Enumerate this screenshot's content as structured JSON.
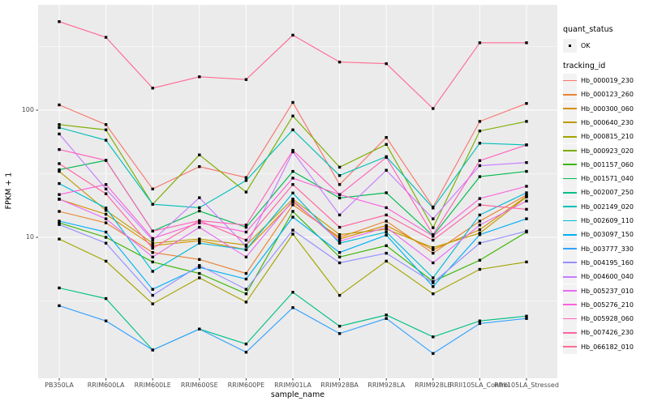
{
  "chart_data": {
    "type": "line",
    "title": "",
    "xlabel": "sample_name",
    "ylabel": "FPKM + 1",
    "y_scale": "log10",
    "y_ticks": [
      {
        "label": "100",
        "value": 100
      },
      {
        "label": "10",
        "value": 10
      }
    ],
    "ylim": [
      0.78,
      660
    ],
    "grid": "on",
    "legend_position": "right",
    "panel_bg": "#EBEBEB",
    "grid_color": "#FFFFFF",
    "point_color": "#000000",
    "axis_text_color": "#4D4D4D",
    "categories": [
      "PB350LA",
      "RRIM600LA",
      "RRIM600LE",
      "RRIM600SE",
      "RRIM600PE",
      "RRIM901LA",
      "RRIM928BA",
      "RRIM928LA",
      "RRIM928LE",
      "RRII105LA_Control",
      "RRII105LA_Stressed"
    ],
    "legend": {
      "quant_status_title": "quant_status",
      "quant_status_items": [
        {
          "label": "OK"
        }
      ],
      "tracking_title": "tracking_id"
    },
    "series": [
      {
        "name": "Hb_000019_230",
        "color": "#F8766D",
        "values": [
          110,
          77,
          24,
          36,
          29.5,
          115,
          26,
          61,
          17.3,
          81.5,
          113
        ]
      },
      {
        "name": "Hb_000123_260",
        "color": "#EA8331",
        "values": [
          16,
          13,
          7.6,
          6.7,
          5.2,
          18,
          10,
          13.4,
          7.5,
          13.4,
          21.5
        ]
      },
      {
        "name": "Hb_000300_060",
        "color": "#D89000",
        "values": [
          19.9,
          15.2,
          8.6,
          9.4,
          8.0,
          19,
          9.7,
          12.4,
          8.0,
          11.5,
          21
        ]
      },
      {
        "name": "Hb_000640_230",
        "color": "#C09B00",
        "values": [
          33,
          16.3,
          9.0,
          9.7,
          8.7,
          20,
          10.5,
          11.6,
          8.3,
          10.8,
          20.8
        ]
      },
      {
        "name": "Hb_000815_210",
        "color": "#A3A500",
        "values": [
          9.7,
          6.5,
          3.0,
          4.8,
          3.1,
          10.6,
          3.5,
          6.5,
          3.6,
          5.6,
          6.4
        ]
      },
      {
        "name": "Hb_000923_020",
        "color": "#7CAE00",
        "values": [
          77,
          70,
          18.2,
          44.5,
          22.7,
          90,
          35.6,
          53.8,
          11.9,
          68.6,
          81.5
        ]
      },
      {
        "name": "Hb_001157_060",
        "color": "#39B600",
        "values": [
          13.0,
          10,
          6.4,
          5.2,
          3.6,
          16,
          7.0,
          8.6,
          4.5,
          6.6,
          11
        ]
      },
      {
        "name": "Hb_001571_040",
        "color": "#00BB4E",
        "values": [
          34,
          40.3,
          11.2,
          16.1,
          12.0,
          33,
          20.4,
          22.4,
          10.3,
          30,
          33
        ]
      },
      {
        "name": "Hb_002007_250",
        "color": "#00C087",
        "values": [
          4.0,
          3.3,
          1.3,
          1.9,
          1.45,
          3.7,
          2.0,
          2.45,
          1.65,
          2.2,
          2.4
        ]
      },
      {
        "name": "Hb_002149_020",
        "color": "#00C0B8",
        "values": [
          73,
          58,
          18.2,
          17.1,
          28,
          70,
          30.6,
          43.1,
          17.0,
          55,
          53.3
        ]
      },
      {
        "name": "Hb_002609_110",
        "color": "#00BCD8",
        "values": [
          26.5,
          17,
          5.4,
          9.0,
          8.0,
          22.3,
          9.0,
          11.0,
          4.8,
          15,
          22.4
        ]
      },
      {
        "name": "Hb_003097_150",
        "color": "#00B0F6",
        "values": [
          13.4,
          11,
          3.9,
          5.8,
          4.7,
          14.4,
          7.6,
          10.4,
          4.1,
          10.5,
          14
        ]
      },
      {
        "name": "Hb_003777_330",
        "color": "#35A2FF",
        "values": [
          2.9,
          2.2,
          1.3,
          1.9,
          1.25,
          2.8,
          1.75,
          2.3,
          1.22,
          2.1,
          2.3
        ]
      },
      {
        "name": "Hb_004195_160",
        "color": "#9590FF",
        "values": [
          12.6,
          9.0,
          3.5,
          6.0,
          3.9,
          11.4,
          6.3,
          7.5,
          4.4,
          9.0,
          11.2
        ]
      },
      {
        "name": "Hb_004600_040",
        "color": "#C77CFF",
        "values": [
          65,
          24,
          9.5,
          20.5,
          8.5,
          47,
          15,
          33.7,
          14,
          36.6,
          38.7
        ]
      },
      {
        "name": "Hb_005237_010",
        "color": "#E76BF3",
        "values": [
          20,
          14,
          7.0,
          12.0,
          7.0,
          19.5,
          9.3,
          12.0,
          6.3,
          12.5,
          19.3
        ]
      },
      {
        "name": "Hb_005276_210",
        "color": "#FA62DB",
        "values": [
          21.7,
          26,
          9.8,
          13.0,
          11.0,
          29.2,
          21.7,
          17.1,
          10.2,
          20.2,
          25.2
        ]
      },
      {
        "name": "Hb_005928_060",
        "color": "#FF62BC",
        "values": [
          49,
          40.3,
          11.2,
          13.5,
          12.5,
          48.3,
          21.7,
          42.5,
          10.5,
          40.1,
          53.3
        ]
      },
      {
        "name": "Hb_007426_230",
        "color": "#FF64A1",
        "values": [
          38,
          22,
          8.2,
          13.5,
          9.5,
          26,
          12,
          15,
          9.5,
          18,
          16.6
        ]
      },
      {
        "name": "Hb_066182_010",
        "color": "#FF6B94",
        "values": [
          497,
          374,
          149,
          183,
          174,
          389,
          239,
          232,
          103,
          339,
          339
        ]
      }
    ]
  }
}
